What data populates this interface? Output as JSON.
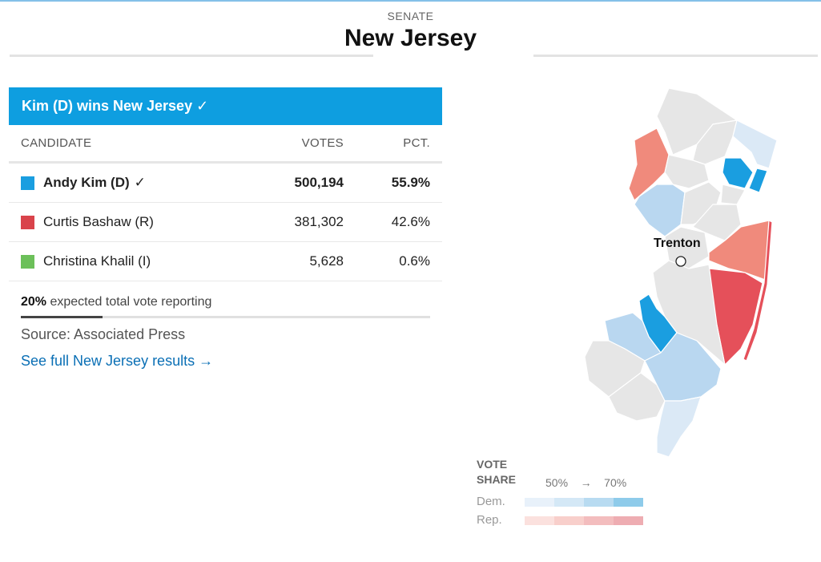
{
  "header": {
    "kicker": "SENATE",
    "state_title": "New Jersey"
  },
  "results": {
    "winner_banner": "Kim (D) wins New Jersey ✓",
    "columns": {
      "candidate": "CANDIDATE",
      "votes": "VOTES",
      "pct": "PCT."
    },
    "candidates": [
      {
        "name": "Andy Kim (D)",
        "check": "✓",
        "votes": "500,194",
        "pct": "55.9%",
        "color": "#1a9ee0"
      },
      {
        "name": "Curtis Bashaw (R)",
        "check": "",
        "votes": "381,302",
        "pct": "42.6%",
        "color": "#d9434b"
      },
      {
        "name": "Christina Khalil (I)",
        "check": "",
        "votes": "5,628",
        "pct": "0.6%",
        "color": "#6cc05a"
      }
    ],
    "reporting_pct": "20%",
    "reporting_text": "expected total vote reporting",
    "reporting_fraction": 0.2,
    "source": "Source: Associated Press",
    "full_link": "See full New Jersey results →"
  },
  "map": {
    "city_label": "Trenton",
    "colors": {
      "gray": "#e6e6e6",
      "dem_light": "#dbe9f6",
      "dem_mid": "#b9d7f0",
      "dem_strong": "#1a9ee0",
      "rep_mid": "#f08a7c",
      "rep_strong": "#e5505a"
    }
  },
  "legend": {
    "title_line1": "VOTE",
    "title_line2": "SHARE",
    "scale_low": "50%",
    "scale_arrow": "→",
    "scale_high": "70%",
    "dem_label": "Dem.",
    "rep_label": "Rep.",
    "dem_colors": [
      "#e8f1fa",
      "#d4e8f6",
      "#b8dbf1",
      "#8ecbea"
    ],
    "rep_colors": [
      "#fbe1de",
      "#f8cfcb",
      "#f3bdbe",
      "#eeadb2"
    ]
  }
}
